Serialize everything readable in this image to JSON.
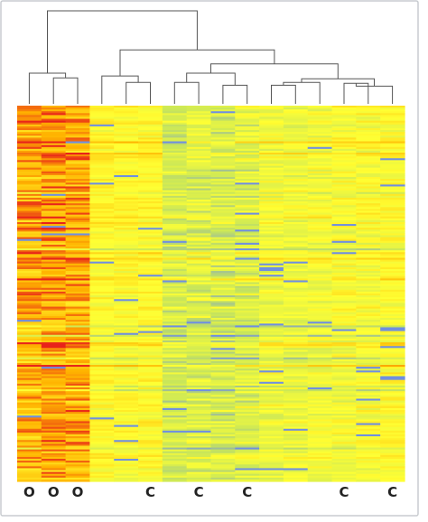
{
  "chart_data": {
    "type": "heatmap",
    "column_labels": [
      "O",
      "O",
      "O",
      "",
      "",
      "C",
      "",
      "C",
      "",
      "C",
      "",
      "",
      "",
      "C",
      "",
      "C"
    ],
    "column_groups": [
      {
        "label": "O",
        "color": "#ff9900",
        "columns": [
          0,
          1,
          2
        ]
      },
      {
        "label": "C",
        "color": "#ffee00",
        "columns": [
          3,
          4,
          5,
          6,
          7,
          8,
          9,
          10,
          11,
          12,
          13,
          14,
          15
        ]
      }
    ],
    "row_count": 200,
    "color_scale": {
      "low": "#6f8fe0",
      "mid_low": "#c8e65a",
      "mid": "#ffff33",
      "mid_high": "#ffb300",
      "high": "#e8231a"
    },
    "dendrogram": {
      "leaves": 16,
      "merges": [
        [
          1,
          2,
          0.28
        ],
        [
          0,
          16,
          0.33
        ],
        [
          4,
          5,
          0.23
        ],
        [
          3,
          18,
          0.3
        ],
        [
          6,
          7,
          0.23
        ],
        [
          8,
          9,
          0.2
        ],
        [
          20,
          21,
          0.33
        ],
        [
          10,
          11,
          0.2
        ],
        [
          12,
          23,
          0.23
        ],
        [
          13,
          14,
          0.22
        ],
        [
          15,
          25,
          0.19
        ],
        [
          24,
          26,
          0.27
        ],
        [
          22,
          27,
          0.43
        ],
        [
          19,
          28,
          0.58
        ],
        [
          17,
          29,
          1.0
        ]
      ]
    }
  }
}
